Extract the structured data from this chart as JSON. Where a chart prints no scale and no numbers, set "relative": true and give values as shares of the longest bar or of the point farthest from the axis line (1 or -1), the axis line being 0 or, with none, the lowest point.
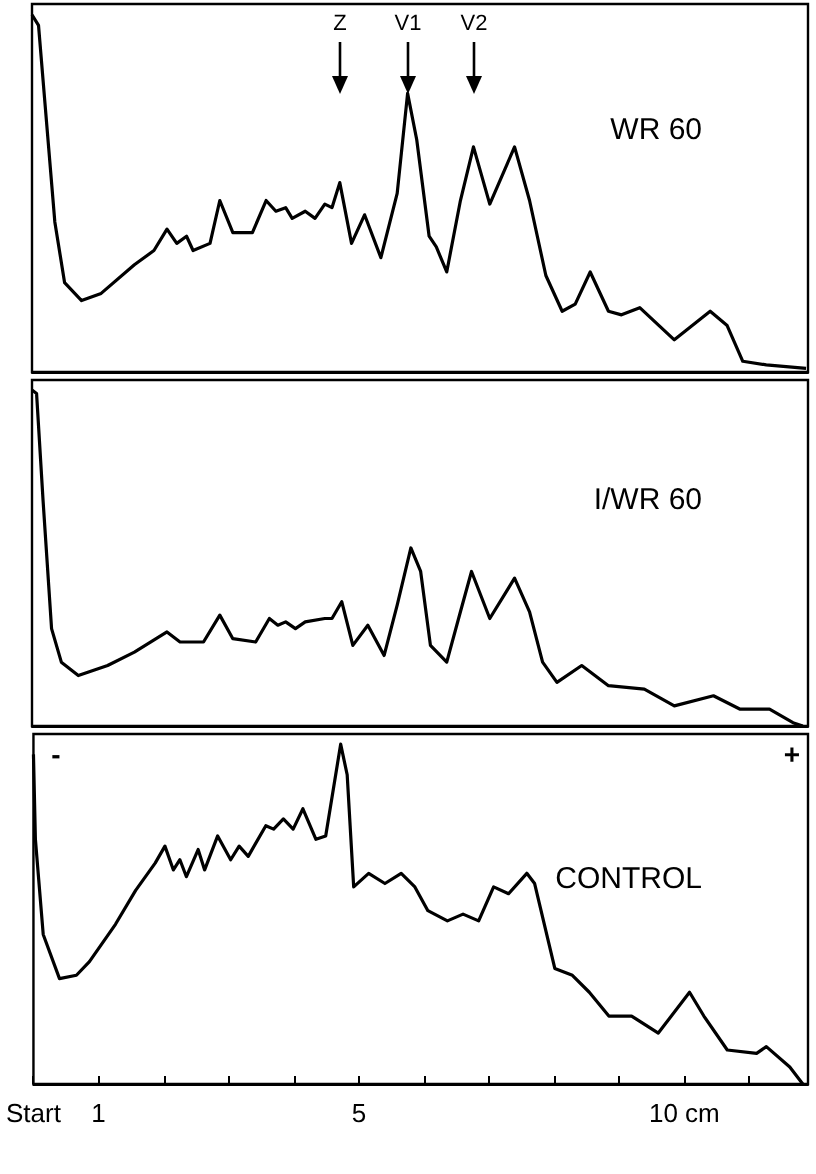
{
  "chart_data": [
    {
      "type": "line",
      "title": "WR 60",
      "relative": true,
      "color": "#000000",
      "marker": "none",
      "line_style": "solid",
      "tick_labels": false,
      "xlim": [
        0,
        11.9
      ],
      "x": [
        0,
        0.1,
        0.2,
        0.35,
        0.5,
        0.76,
        1.06,
        1.57,
        1.87,
        2.07,
        2.22,
        2.37,
        2.47,
        2.73,
        2.88,
        3.08,
        3.38,
        3.59,
        3.74,
        3.89,
        3.99,
        4.19,
        4.34,
        4.49,
        4.6,
        4.72,
        4.9,
        5.1,
        5.35,
        5.6,
        5.76,
        5.9,
        6.09,
        6.2,
        6.36,
        6.57,
        6.77,
        7.02,
        7.4,
        7.63,
        7.88,
        8.13,
        8.33,
        8.56,
        8.84,
        9.04,
        9.32,
        9.85,
        10.4,
        10.66,
        10.9,
        11.26,
        11.87
      ],
      "values": [
        1.0,
        0.97,
        0.75,
        0.42,
        0.25,
        0.2,
        0.22,
        0.3,
        0.34,
        0.4,
        0.36,
        0.38,
        0.34,
        0.36,
        0.48,
        0.39,
        0.39,
        0.48,
        0.45,
        0.46,
        0.43,
        0.45,
        0.43,
        0.47,
        0.46,
        0.53,
        0.36,
        0.44,
        0.32,
        0.5,
        0.78,
        0.65,
        0.38,
        0.35,
        0.28,
        0.48,
        0.63,
        0.47,
        0.63,
        0.48,
        0.27,
        0.17,
        0.19,
        0.28,
        0.17,
        0.16,
        0.18,
        0.09,
        0.17,
        0.13,
        0.03,
        0.02,
        0.01
      ],
      "annotations": [
        "Z",
        "V1",
        "V2"
      ]
    },
    {
      "type": "line",
      "title": "I/WR 60",
      "relative": true,
      "color": "#000000",
      "marker": "none",
      "line_style": "solid",
      "tick_labels": false,
      "xlim": [
        0,
        11.9
      ],
      "x": [
        0,
        0.07,
        0.17,
        0.3,
        0.45,
        0.71,
        1.16,
        1.57,
        2.07,
        2.27,
        2.63,
        2.88,
        3.08,
        3.43,
        3.64,
        3.77,
        3.89,
        4.04,
        4.19,
        4.49,
        4.6,
        4.75,
        4.92,
        5.15,
        5.4,
        5.6,
        5.81,
        5.96,
        6.11,
        6.36,
        6.57,
        6.74,
        7.02,
        7.4,
        7.63,
        7.83,
        8.05,
        8.43,
        8.84,
        9.39,
        9.85,
        10.45,
        10.86,
        11.31,
        11.67,
        11.82
      ],
      "values": [
        1.0,
        0.99,
        0.67,
        0.29,
        0.19,
        0.15,
        0.18,
        0.22,
        0.28,
        0.25,
        0.25,
        0.33,
        0.26,
        0.25,
        0.32,
        0.3,
        0.31,
        0.29,
        0.31,
        0.32,
        0.32,
        0.37,
        0.24,
        0.3,
        0.21,
        0.36,
        0.53,
        0.46,
        0.24,
        0.19,
        0.34,
        0.46,
        0.32,
        0.44,
        0.34,
        0.19,
        0.13,
        0.18,
        0.12,
        0.11,
        0.06,
        0.09,
        0.05,
        0.05,
        0.01,
        0
      ]
    },
    {
      "type": "line",
      "title": "CONTROL",
      "relative": true,
      "color": "#000000",
      "marker": "none",
      "line_style": "solid",
      "tick_labels": "x",
      "xlim": [
        0,
        11.9
      ],
      "xticks": [
        {
          "value": 0,
          "label": "Start"
        },
        1,
        {
          "value": 2,
          "label": null
        },
        {
          "value": 3,
          "label": null
        },
        {
          "value": 4,
          "label": null
        },
        5,
        {
          "value": 6,
          "label": null
        },
        {
          "value": 7,
          "label": null
        },
        {
          "value": 8,
          "label": null
        },
        {
          "value": 9,
          "label": null
        },
        {
          "value": 10,
          "label": "10 cm"
        },
        {
          "value": 11,
          "label": null
        }
      ],
      "x": [
        0,
        0.03,
        0.15,
        0.4,
        0.66,
        0.86,
        1.26,
        1.57,
        1.87,
        2.02,
        2.15,
        2.25,
        2.35,
        2.53,
        2.63,
        2.83,
        3.03,
        3.16,
        3.3,
        3.57,
        3.69,
        3.84,
        3.99,
        4.14,
        4.34,
        4.49,
        4.72,
        4.82,
        4.92,
        5.15,
        5.4,
        5.65,
        5.86,
        6.06,
        6.36,
        6.6,
        6.84,
        7.07,
        7.3,
        7.58,
        7.7,
        8.01,
        8.28,
        8.54,
        8.84,
        9.19,
        9.6,
        10.08,
        10.3,
        10.66,
        11.11,
        11.26,
        11.62,
        11.82
      ],
      "values": [
        0.97,
        0.72,
        0.44,
        0.31,
        0.32,
        0.36,
        0.47,
        0.57,
        0.65,
        0.7,
        0.63,
        0.66,
        0.61,
        0.69,
        0.63,
        0.73,
        0.66,
        0.7,
        0.67,
        0.76,
        0.75,
        0.78,
        0.75,
        0.81,
        0.72,
        0.73,
        1.0,
        0.91,
        0.58,
        0.62,
        0.59,
        0.62,
        0.58,
        0.51,
        0.48,
        0.5,
        0.48,
        0.58,
        0.56,
        0.62,
        0.59,
        0.34,
        0.32,
        0.27,
        0.2,
        0.2,
        0.15,
        0.27,
        0.2,
        0.1,
        0.09,
        0.11,
        0.05,
        0
      ],
      "annotations": [
        "-",
        "+"
      ]
    }
  ]
}
